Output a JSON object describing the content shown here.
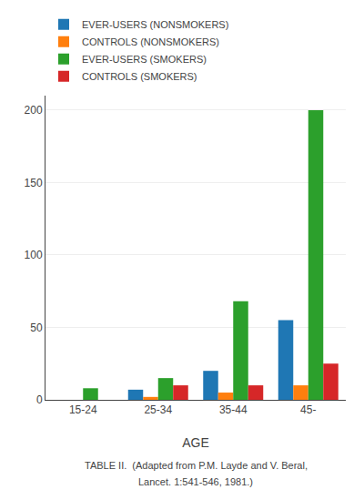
{
  "chart_data": {
    "type": "bar",
    "categories": [
      "15-24",
      "25-34",
      "35-44",
      "45-"
    ],
    "series": [
      {
        "name": "EVER-USERS (NONSMOKERS)",
        "values": [
          0,
          7,
          20,
          55
        ]
      },
      {
        "name": "CONTROLS (NONSMOKERS)",
        "values": [
          0,
          2,
          5,
          10
        ]
      },
      {
        "name": "EVER-USERS (SMOKERS)",
        "values": [
          8,
          15,
          68,
          200
        ]
      },
      {
        "name": "CONTROLS (SMOKERS)",
        "values": [
          0,
          10,
          10,
          25
        ]
      }
    ],
    "xlabel": "AGE",
    "ylim": [
      0,
      210
    ],
    "yticks": [
      0,
      50,
      100,
      150,
      200
    ],
    "grid": true,
    "legend": "top",
    "annotations": [
      "TABLE II.  (Adapted from P.M. Layde and V. Beral,",
      "Lancet. 1:541-546, 1981.)"
    ]
  }
}
